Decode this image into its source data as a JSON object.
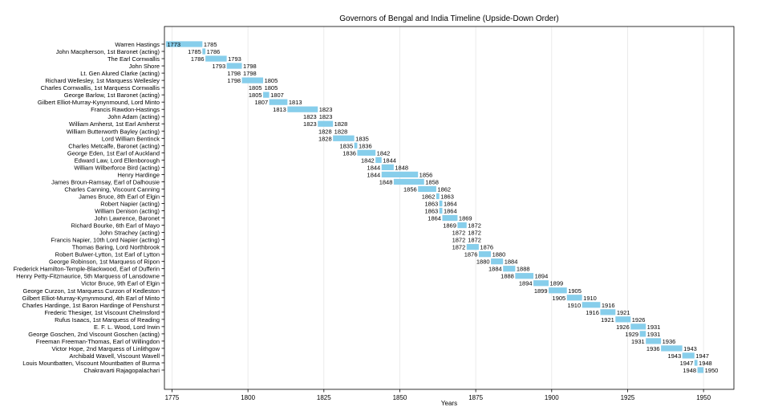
{
  "chart_data": {
    "type": "bar",
    "orientation": "horizontal-timeline",
    "title": "Governors of Bengal and India Timeline (Upside-Down Order)",
    "xlabel": "Years",
    "ylabel": "",
    "xlim": [
      1772.5,
      1960
    ],
    "xticks": [
      1775,
      1800,
      1825,
      1850,
      1875,
      1900,
      1925,
      1950
    ],
    "grid": "x",
    "bar_color": "#87CEEB",
    "governors": [
      {
        "name": "Warren Hastings",
        "start": 1773,
        "end": 1785
      },
      {
        "name": "John Macpherson, 1st Baronet (acting)",
        "start": 1785,
        "end": 1786
      },
      {
        "name": "The Earl Cornwallis",
        "start": 1786,
        "end": 1793
      },
      {
        "name": "John Shore",
        "start": 1793,
        "end": 1798
      },
      {
        "name": "Lt. Gen Alured Clarke (acting)",
        "start": 1798,
        "end": 1798
      },
      {
        "name": "Richard Wellesley, 1st Marquess Wellesley",
        "start": 1798,
        "end": 1805
      },
      {
        "name": "Charles Cornwallis, 1st Marquess Cornwallis",
        "start": 1805,
        "end": 1805
      },
      {
        "name": "George Barlow, 1st Baronet (acting)",
        "start": 1805,
        "end": 1807
      },
      {
        "name": "Gilbert Elliot-Murray-Kynynmound, Lord Minto",
        "start": 1807,
        "end": 1813
      },
      {
        "name": "Francis Rawdon-Hastings",
        "start": 1813,
        "end": 1823
      },
      {
        "name": "John Adam (acting)",
        "start": 1823,
        "end": 1823
      },
      {
        "name": "William Amherst, 1st Earl Amherst",
        "start": 1823,
        "end": 1828
      },
      {
        "name": "William Butterworth Bayley (acting)",
        "start": 1828,
        "end": 1828
      },
      {
        "name": "Lord William Bentinck",
        "start": 1828,
        "end": 1835
      },
      {
        "name": "Charles Metcalfe, Baronet (acting)",
        "start": 1835,
        "end": 1836
      },
      {
        "name": "George Eden, 1st Earl of Auckland",
        "start": 1836,
        "end": 1842
      },
      {
        "name": "Edward Law, Lord Ellenborough",
        "start": 1842,
        "end": 1844
      },
      {
        "name": "William Wilberforce Bird (acting)",
        "start": 1844,
        "end": 1848
      },
      {
        "name": "Henry Hardinge",
        "start": 1844,
        "end": 1856
      },
      {
        "name": "James Broun-Ramsay, Earl of Dalhousie",
        "start": 1848,
        "end": 1858
      },
      {
        "name": "Charles Canning, Viscount Canning",
        "start": 1856,
        "end": 1862
      },
      {
        "name": "James Bruce, 8th Earl of Elgin",
        "start": 1862,
        "end": 1863
      },
      {
        "name": "Robert Napier (acting)",
        "start": 1863,
        "end": 1864
      },
      {
        "name": "William Denison (acting)",
        "start": 1863,
        "end": 1864
      },
      {
        "name": "John Lawrence, Baronet",
        "start": 1864,
        "end": 1869
      },
      {
        "name": "Richard Bourke, 6th Earl of Mayo",
        "start": 1869,
        "end": 1872
      },
      {
        "name": "John Strachey (acting)",
        "start": 1872,
        "end": 1872
      },
      {
        "name": "Francis Napier, 10th Lord Napier (acting)",
        "start": 1872,
        "end": 1872
      },
      {
        "name": "Thomas Baring, Lord Northbrook",
        "start": 1872,
        "end": 1876
      },
      {
        "name": "Robert Bulwer-Lytton, 1st Earl of Lytton",
        "start": 1876,
        "end": 1880
      },
      {
        "name": "George Robinson, 1st Marquess of Ripon",
        "start": 1880,
        "end": 1884
      },
      {
        "name": "Frederick Hamilton-Temple-Blackwood, Earl of Dufferin",
        "start": 1884,
        "end": 1888
      },
      {
        "name": "Henry Petty-Fitzmaurice, 5th Marquess of Lansdowne",
        "start": 1888,
        "end": 1894
      },
      {
        "name": "Victor Bruce, 9th Earl of Elgin",
        "start": 1894,
        "end": 1899
      },
      {
        "name": "George Curzon, 1st Marquess Curzon of Kedleston",
        "start": 1899,
        "end": 1905
      },
      {
        "name": "Gilbert Elliot-Murray-Kynynmound, 4th Earl of Minto",
        "start": 1905,
        "end": 1910
      },
      {
        "name": "Charles Hardinge, 1st Baron Hardinge of Penshurst",
        "start": 1910,
        "end": 1916
      },
      {
        "name": "Frederic Thesiger, 1st Viscount Chelmsford",
        "start": 1916,
        "end": 1921
      },
      {
        "name": "Rufus Isaacs, 1st Marquess of Reading",
        "start": 1921,
        "end": 1926
      },
      {
        "name": "E. F. L. Wood, Lord Irwin",
        "start": 1926,
        "end": 1931
      },
      {
        "name": "George Goschen, 2nd Viscount Goschen (acting)",
        "start": 1929,
        "end": 1931
      },
      {
        "name": "Freeman Freeman-Thomas, Earl of Willingdon",
        "start": 1931,
        "end": 1936
      },
      {
        "name": "Victor Hope, 2nd Marquess of Linlithgow",
        "start": 1936,
        "end": 1943
      },
      {
        "name": "Archibald Wavell, Viscount Wavell",
        "start": 1943,
        "end": 1947
      },
      {
        "name": "Louis Mountbatten, Viscount Mountbatten of Burma",
        "start": 1947,
        "end": 1948
      },
      {
        "name": "Chakravarti Rajagopalachari",
        "start": 1948,
        "end": 1950
      }
    ]
  }
}
